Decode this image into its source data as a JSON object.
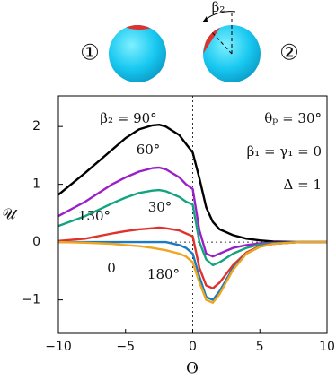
{
  "chart_data": {
    "type": "line",
    "x_label": "Θ",
    "y_label": "𝒰",
    "annotations": [
      "θₚ = 30°",
      "β₁ = γ₁ = 0",
      "Δ = 1"
    ],
    "diagram_labels": [
      "①",
      "②",
      "β₂"
    ],
    "x": [
      -10,
      -8,
      -6,
      -5,
      -4,
      -3,
      -2.5,
      -2,
      -1,
      -0.5,
      0,
      0.5,
      1,
      1.5,
      2,
      3,
      4,
      5,
      6,
      8,
      10
    ],
    "series": [
      {
        "name": "β₂ = 90°",
        "color": "#000000",
        "values": [
          0.82,
          1.2,
          1.6,
          1.8,
          1.95,
          2.02,
          2.03,
          2.0,
          1.85,
          1.7,
          1.55,
          1.1,
          0.6,
          0.35,
          0.22,
          0.12,
          0.06,
          0.03,
          0.01,
          0,
          0
        ]
      },
      {
        "name": "60°",
        "color": "#9a1fc8",
        "values": [
          0.45,
          0.7,
          1.0,
          1.12,
          1.22,
          1.28,
          1.29,
          1.26,
          1.12,
          1.0,
          0.92,
          0.2,
          -0.2,
          -0.25,
          -0.2,
          -0.1,
          -0.05,
          -0.02,
          -0.01,
          0,
          0
        ]
      },
      {
        "name": "130°",
        "color": "#13a37e",
        "values": [
          0.28,
          0.45,
          0.67,
          0.77,
          0.85,
          0.89,
          0.9,
          0.88,
          0.78,
          0.7,
          0.65,
          0,
          -0.3,
          -0.4,
          -0.35,
          -0.2,
          -0.1,
          -0.04,
          -0.02,
          0,
          0
        ]
      },
      {
        "name": "30°",
        "color": "#e0312a",
        "values": [
          0.02,
          0.06,
          0.15,
          0.19,
          0.22,
          0.24,
          0.25,
          0.24,
          0.2,
          0.15,
          0.1,
          -0.45,
          -0.75,
          -0.8,
          -0.7,
          -0.4,
          -0.18,
          -0.07,
          -0.03,
          0,
          0
        ]
      },
      {
        "name": "180°",
        "color": "#1a7bc0",
        "values": [
          0,
          0,
          0,
          0,
          0,
          0,
          0,
          0,
          -0.05,
          -0.1,
          -0.2,
          -0.6,
          -0.95,
          -1.0,
          -0.85,
          -0.45,
          -0.2,
          -0.08,
          -0.03,
          0,
          0
        ]
      },
      {
        "name": "0",
        "color": "#f0a520",
        "values": [
          0,
          -0.01,
          -0.03,
          -0.05,
          -0.07,
          -0.1,
          -0.12,
          -0.14,
          -0.2,
          -0.25,
          -0.35,
          -0.7,
          -1.0,
          -1.05,
          -0.9,
          -0.48,
          -0.2,
          -0.08,
          -0.03,
          0,
          0
        ]
      }
    ],
    "xlim": [
      -10,
      10
    ],
    "ylim": [
      -1.58,
      2.53
    ],
    "xticks": [
      {
        "value": -10,
        "label": "−10"
      },
      {
        "value": -5,
        "label": "−5"
      },
      0,
      5,
      10
    ],
    "yticks": [
      {
        "value": -1,
        "label": "−1"
      },
      0,
      1,
      2
    ]
  }
}
